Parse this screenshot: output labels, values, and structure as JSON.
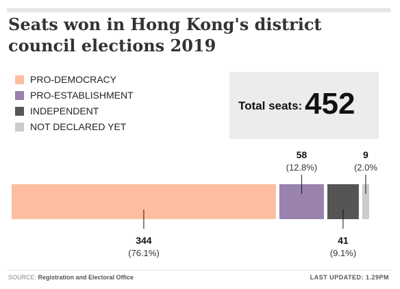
{
  "title": "Seats won in Hong Kong's district council elections 2019",
  "total": {
    "label": "Total seats:",
    "value": "452"
  },
  "footer": {
    "source_label": "SOURCE:",
    "source_value": "Registration and Electoral Office",
    "updated": "LAST UPDATED:  1.29PM"
  },
  "chart_data": {
    "type": "bar",
    "orientation": "horizontal-stacked",
    "categories": [
      "PRO-DEMOCRACY",
      "PRO-ESTABLISHMENT",
      "INDEPENDENT",
      "NOT DECLARED YET"
    ],
    "values": [
      344,
      58,
      41,
      9
    ],
    "percent_labels": [
      "(76.1%)",
      "(12.8%)",
      "(9.1%)",
      "(2.0%"
    ],
    "colors": [
      "#fdbea0",
      "#9982ae",
      "#555555",
      "#cccccc"
    ],
    "label_side": [
      "below",
      "above",
      "below",
      "above"
    ],
    "legend_position": "top-left",
    "grid": false
  }
}
